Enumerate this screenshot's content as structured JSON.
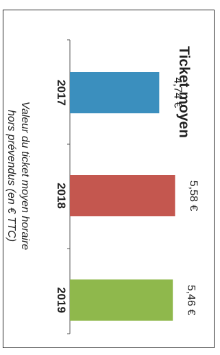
{
  "chart_data": {
    "type": "bar",
    "orientation": "horizontal",
    "title": "Ticket moyen",
    "categories": [
      "2017",
      "2018",
      "2019"
    ],
    "values": [
      4.74,
      5.58,
      5.46
    ],
    "value_labels": [
      "4,74 €",
      "5,58 €",
      "5,46 €"
    ],
    "colors": [
      "#3b8fbe",
      "#c4574f",
      "#8fb84c"
    ],
    "caption_lines": [
      "Valeur du ticket moyen horaire",
      "hors prévendus (en € TTC)"
    ],
    "xlim": [
      0,
      6
    ],
    "grid": false,
    "legend": "none"
  }
}
